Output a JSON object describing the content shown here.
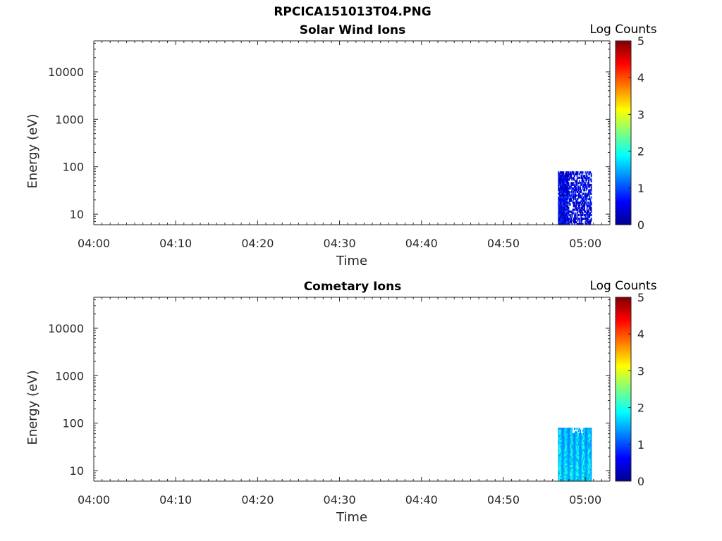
{
  "figure": {
    "title": "RPCICA151013T04.PNG"
  },
  "colors": {
    "axis": "#262626",
    "colormap": [
      "#00008f",
      "#0000ff",
      "#007fff",
      "#00ffff",
      "#7fff7f",
      "#ffff00",
      "#ff7f00",
      "#ff0000",
      "#7f0000"
    ]
  },
  "chart_data": [
    {
      "type": "heatmap",
      "title": "Solar Wind Ions",
      "xlabel": "Time",
      "ylabel": "Energy (eV)",
      "x_scale": "time",
      "y_scale": "log",
      "xlim": [
        "04:00",
        "05:03"
      ],
      "ylim": [
        6,
        45000
      ],
      "x_ticks": [
        "04:00",
        "04:10",
        "04:20",
        "04:30",
        "04:40",
        "04:50",
        "05:00"
      ],
      "y_ticks": [
        10,
        100,
        1000,
        10000
      ],
      "y_tick_labels": [
        "10",
        "100",
        "1000",
        "10000"
      ],
      "colorbar": {
        "label": "Log Counts",
        "range": [
          0,
          5
        ],
        "ticks": [
          "0",
          "1",
          "2",
          "3",
          "4",
          "5"
        ]
      },
      "data_region": {
        "time_start": "04:56:40",
        "time_end": "05:00:45",
        "energy_min": 6,
        "energy_max": 80
      },
      "data_pattern": "sparse-dark-blue",
      "value_range": [
        0,
        1
      ]
    },
    {
      "type": "heatmap",
      "title": "Cometary Ions",
      "xlabel": "Time",
      "ylabel": "Energy (eV)",
      "x_scale": "time",
      "y_scale": "log",
      "xlim": [
        "04:00",
        "05:03"
      ],
      "ylim": [
        6,
        45000
      ],
      "x_ticks": [
        "04:00",
        "04:10",
        "04:20",
        "04:30",
        "04:40",
        "04:50",
        "05:00"
      ],
      "y_ticks": [
        10,
        100,
        1000,
        10000
      ],
      "y_tick_labels": [
        "10",
        "100",
        "1000",
        "10000"
      ],
      "colorbar": {
        "label": "Log Counts",
        "range": [
          0,
          5
        ],
        "ticks": [
          "0",
          "1",
          "2",
          "3",
          "4",
          "5"
        ]
      },
      "data_region": {
        "time_start": "04:56:40",
        "time_end": "05:00:45",
        "energy_min": 6,
        "energy_max": 80
      },
      "data_pattern": "dense-cyan-blue",
      "value_range": [
        0.8,
        2.6
      ]
    }
  ]
}
